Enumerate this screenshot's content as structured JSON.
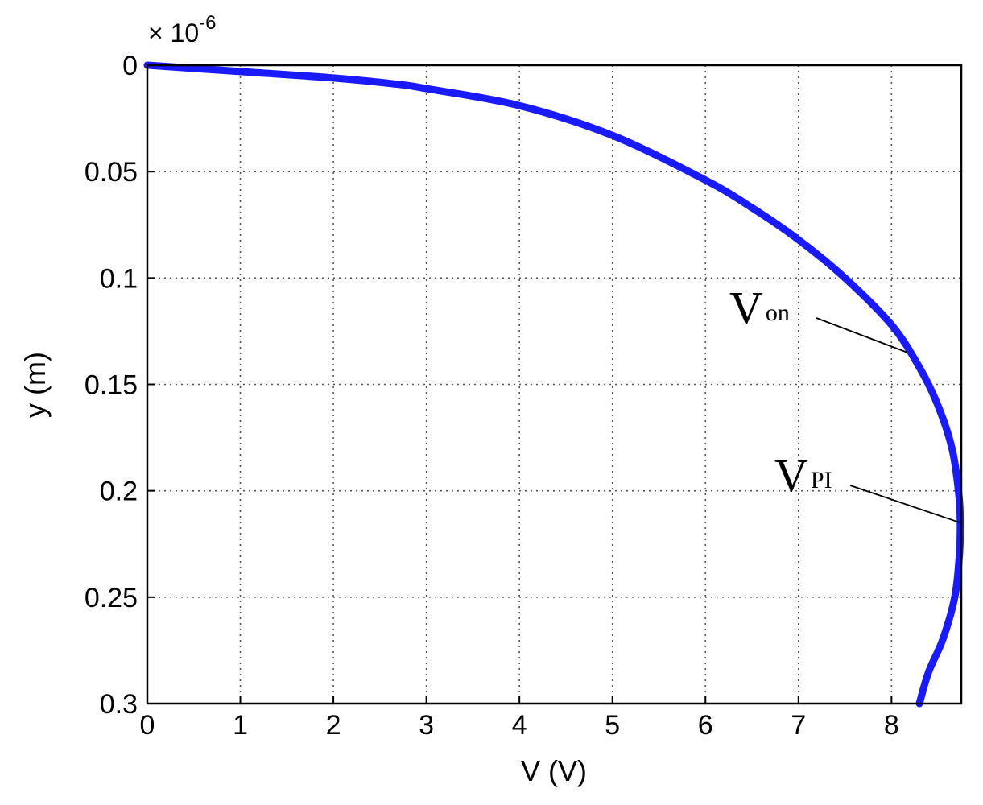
{
  "chart_data": {
    "type": "line",
    "title": "",
    "xlabel": "V (V)",
    "ylabel": "y (m)",
    "y_multiplier": "× 10",
    "y_multiplier_exp": "-6",
    "xlim": [
      0,
      8.75
    ],
    "ylim": [
      0,
      0.3
    ],
    "y_inverted": true,
    "grid": true,
    "x_ticks": [
      "0",
      "1",
      "2",
      "3",
      "4",
      "5",
      "6",
      "7",
      "8"
    ],
    "y_ticks": [
      "0",
      "0.05",
      "0.1",
      "0.15",
      "0.2",
      "0.25",
      "0.3"
    ],
    "series": [
      {
        "color": "#1a1aff",
        "x": [
          0,
          1,
          2,
          2.7,
          3,
          4,
          5,
          6,
          6.5,
          7,
          7.5,
          8,
          8.3,
          8.5,
          8.65,
          8.72,
          8.74,
          8.73,
          8.68,
          8.55,
          8.4,
          8.3
        ],
        "y": [
          0,
          0.003,
          0.006,
          0.009,
          0.011,
          0.019,
          0.033,
          0.054,
          0.067,
          0.082,
          0.1,
          0.122,
          0.142,
          0.16,
          0.18,
          0.2,
          0.215,
          0.23,
          0.25,
          0.27,
          0.285,
          0.3
        ]
      }
    ],
    "annotations": [
      {
        "main": "V",
        "sub": "on",
        "x": 8.17,
        "y": 0.135
      },
      {
        "main": "V",
        "sub": "PI",
        "x": 8.74,
        "y": 0.215
      }
    ]
  }
}
